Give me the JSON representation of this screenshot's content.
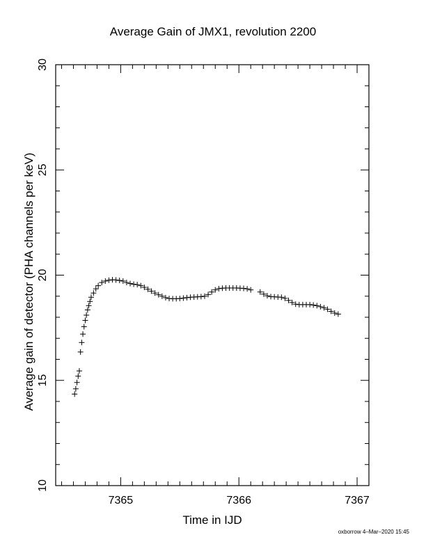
{
  "chart_data": {
    "type": "scatter",
    "title": "Average Gain of JMX1, revolution 2200",
    "xlabel": "Time in IJD",
    "ylabel": "Average gain of detector (PHA channels per keV)",
    "xlim": [
      7364.45,
      7367.1
    ],
    "ylim": [
      10,
      30
    ],
    "xticks": [
      7365,
      7366,
      7367
    ],
    "yticks": [
      10,
      15,
      20,
      25,
      30
    ],
    "marker": "plus",
    "grid": false,
    "series": [
      {
        "values": [
          [
            7364.61,
            14.35
          ],
          [
            7364.62,
            14.6
          ],
          [
            7364.63,
            14.9
          ],
          [
            7364.64,
            15.2
          ],
          [
            7364.65,
            15.45
          ],
          [
            7364.66,
            16.35
          ],
          [
            7364.67,
            16.8
          ],
          [
            7364.68,
            17.2
          ],
          [
            7364.69,
            17.55
          ],
          [
            7364.7,
            17.85
          ],
          [
            7364.71,
            18.1
          ],
          [
            7364.72,
            18.35
          ],
          [
            7364.73,
            18.55
          ],
          [
            7364.74,
            18.75
          ],
          [
            7364.75,
            18.95
          ],
          [
            7364.77,
            19.15
          ],
          [
            7364.79,
            19.35
          ],
          [
            7364.81,
            19.5
          ],
          [
            7364.84,
            19.65
          ],
          [
            7364.87,
            19.72
          ],
          [
            7364.9,
            19.76
          ],
          [
            7364.93,
            19.78
          ],
          [
            7364.96,
            19.77
          ],
          [
            7364.99,
            19.75
          ],
          [
            7365.02,
            19.72
          ],
          [
            7365.05,
            19.65
          ],
          [
            7365.08,
            19.6
          ],
          [
            7365.11,
            19.57
          ],
          [
            7365.14,
            19.55
          ],
          [
            7365.17,
            19.5
          ],
          [
            7365.2,
            19.42
          ],
          [
            7365.23,
            19.33
          ],
          [
            7365.26,
            19.24
          ],
          [
            7365.29,
            19.15
          ],
          [
            7365.32,
            19.07
          ],
          [
            7365.35,
            19.0
          ],
          [
            7365.38,
            18.93
          ],
          [
            7365.41,
            18.89
          ],
          [
            7365.44,
            18.88
          ],
          [
            7365.47,
            18.88
          ],
          [
            7365.5,
            18.89
          ],
          [
            7365.53,
            18.91
          ],
          [
            7365.56,
            18.93
          ],
          [
            7365.59,
            18.95
          ],
          [
            7365.62,
            18.96
          ],
          [
            7365.65,
            18.97
          ],
          [
            7365.68,
            18.98
          ],
          [
            7365.71,
            19.0
          ],
          [
            7365.74,
            19.08
          ],
          [
            7365.77,
            19.2
          ],
          [
            7365.8,
            19.3
          ],
          [
            7365.83,
            19.36
          ],
          [
            7365.86,
            19.38
          ],
          [
            7365.89,
            19.39
          ],
          [
            7365.92,
            19.39
          ],
          [
            7365.95,
            19.39
          ],
          [
            7365.98,
            19.39
          ],
          [
            7366.01,
            19.38
          ],
          [
            7366.04,
            19.37
          ],
          [
            7366.07,
            19.35
          ],
          [
            7366.1,
            19.3
          ],
          [
            7366.18,
            19.2
          ],
          [
            7366.21,
            19.1
          ],
          [
            7366.24,
            19.02
          ],
          [
            7366.27,
            18.98
          ],
          [
            7366.3,
            18.97
          ],
          [
            7366.33,
            18.96
          ],
          [
            7366.36,
            18.95
          ],
          [
            7366.39,
            18.9
          ],
          [
            7366.42,
            18.8
          ],
          [
            7366.45,
            18.7
          ],
          [
            7366.48,
            18.62
          ],
          [
            7366.51,
            18.6
          ],
          [
            7366.54,
            18.6
          ],
          [
            7366.57,
            18.6
          ],
          [
            7366.6,
            18.6
          ],
          [
            7366.63,
            18.58
          ],
          [
            7366.66,
            18.55
          ],
          [
            7366.69,
            18.5
          ],
          [
            7366.72,
            18.45
          ],
          [
            7366.75,
            18.38
          ],
          [
            7366.78,
            18.28
          ],
          [
            7366.81,
            18.2
          ],
          [
            7366.84,
            18.15
          ]
        ]
      }
    ]
  },
  "footer": {
    "stamp": "oxborrow  4–Mar–2020 15:45"
  }
}
